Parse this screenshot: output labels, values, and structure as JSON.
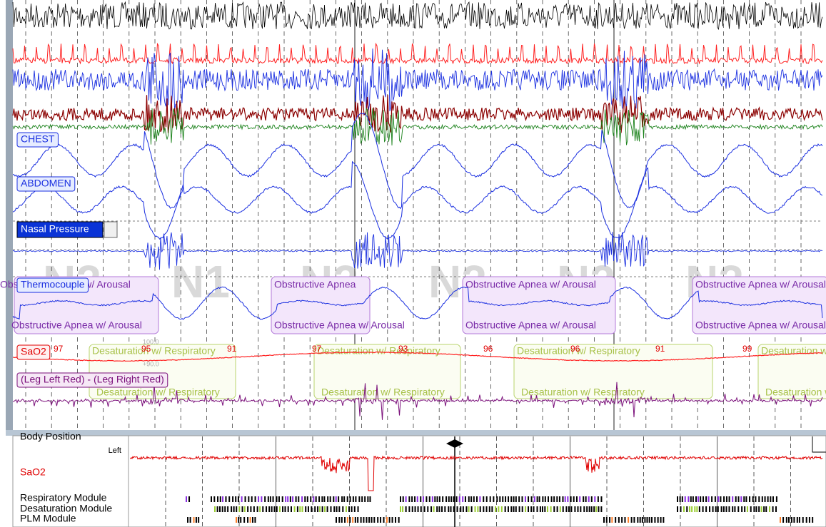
{
  "channels": {
    "chest": "CHEST",
    "abdomen": "ABDOMEN",
    "nasal": "Nasal Pressure",
    "thermo": "Thermocouple",
    "sao2": "SaO2",
    "leg": "(Leg Left Red) - (Leg Right Red)"
  },
  "stages": [
    "N2",
    "N1",
    "N2",
    "N2",
    "N2",
    "N2"
  ],
  "events": [
    {
      "top": "Obstructive Apnea w/ Arousal",
      "bottom": "Obstructive Apnea w/ Arousal"
    },
    {
      "top": "Obstructive Apnea",
      "bottom": "Obstructive Apnea w/ Arousal"
    },
    {
      "top": "Obstructive Apnea w/ Arousal",
      "bottom": "Obstructive Apnea w/ Arousal"
    },
    {
      "top": "Obstructive Apnea w/ Arousal",
      "bottom": "Obstructive Apnea w/ Arousal"
    }
  ],
  "desaturations": [
    {
      "top": "Desaturation w/ Respiratory",
      "bottom": "Desaturation w/ Respiratory"
    },
    {
      "top": "Desaturation w/ Respiratory",
      "bottom": "Desaturation w/ Respiratory"
    },
    {
      "top": "Desaturation w/ Respiratory",
      "bottom": "Desaturation w/ Respiratory"
    },
    {
      "top": "Desaturation w/ Respiratory",
      "bottom": "Desaturation w/ Respiratory"
    }
  ],
  "sat_labels": [
    97,
    95,
    91,
    97,
    93,
    96,
    96,
    91,
    99
  ],
  "sao2_scale": {
    "top": "100.0",
    "mid": "+90.0"
  },
  "overview": {
    "body_position": "Body Position",
    "left": "Left",
    "sao2": "SaO2",
    "respiratory": "Respiratory Module",
    "desaturation": "Desaturation Module",
    "plm": "PLM Module"
  }
}
